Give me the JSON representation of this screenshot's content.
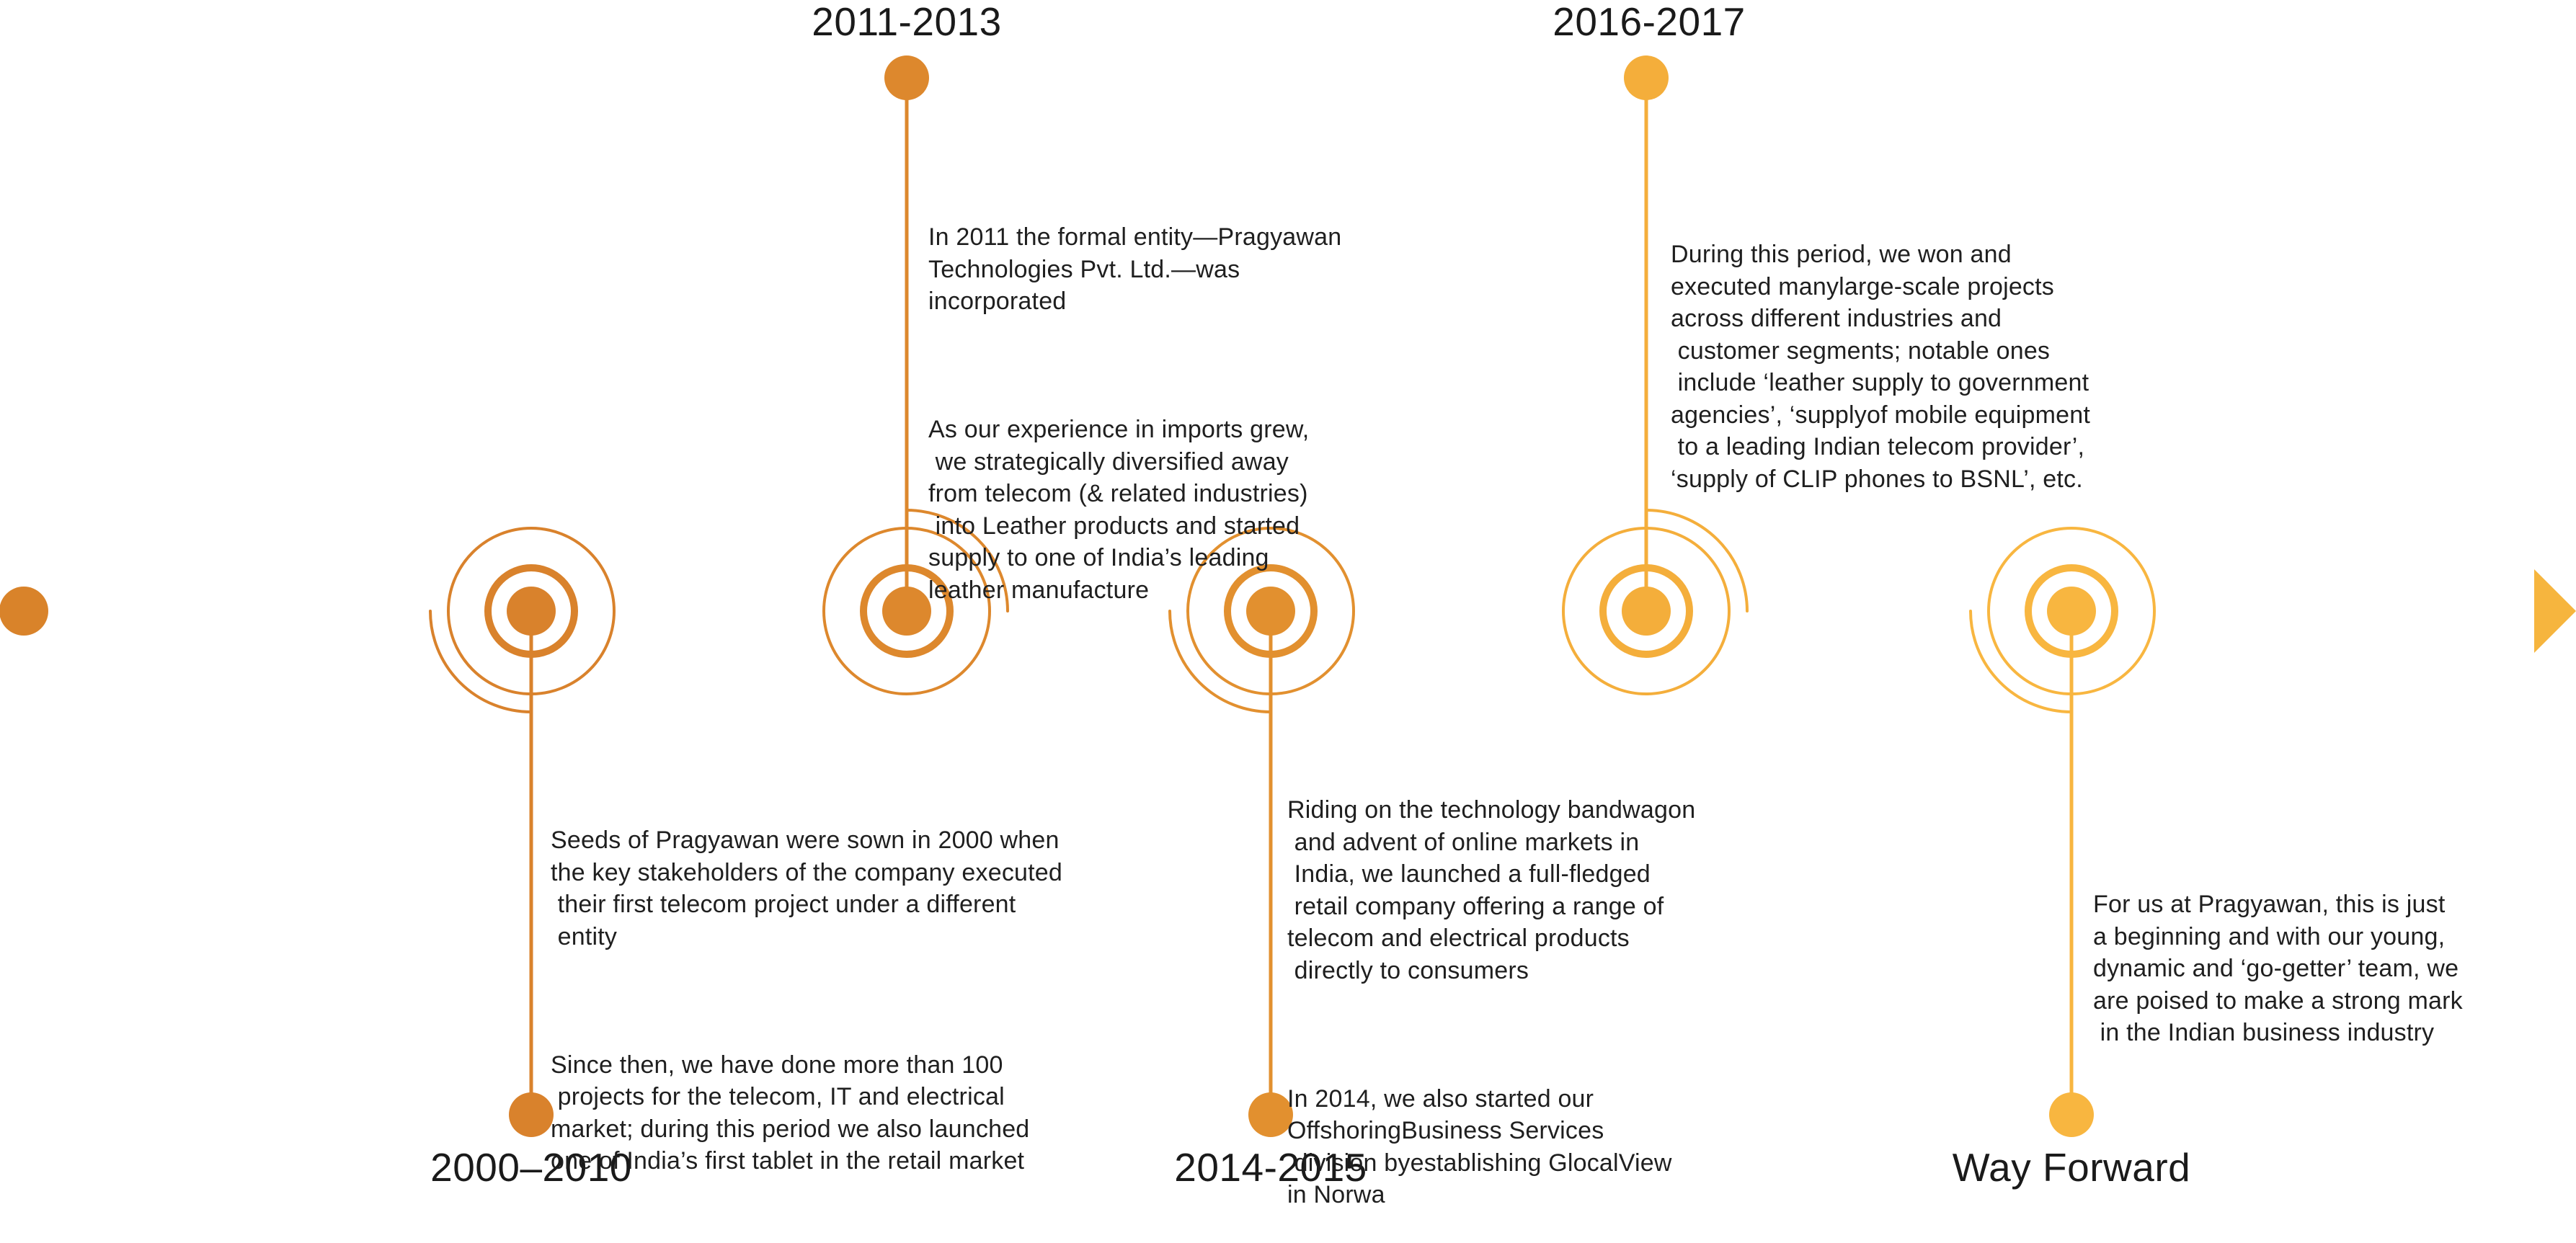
{
  "colors": {
    "arrow_start": "#D9832A",
    "arrow_end": "#F6B53E",
    "milestone_1": "#D9822C",
    "milestone_2": "#DD882D",
    "milestone_3": "#E2902F",
    "milestone_4": "#EDA436",
    "milestone_5": "#F4AE3B",
    "milestone_6": "#F8B640"
  },
  "milestones": [
    {
      "label": "2000–2010",
      "paragraphs": [
        "Seeds of Pragyawan were sown in 2000 when\nthe key stakeholders of the company executed\n their first telecom project under a different\n entity",
        "Since then, we have done more than 100\n projects for the telecom, IT and electrical\nmarket; during this period we also launched\none of India’s first tablet in the retail market"
      ]
    },
    {
      "label": "2011-2013",
      "paragraphs": [
        "In 2011 the formal entity—Pragyawan\nTechnologies Pvt. Ltd.—was\nincorporated",
        "As our experience in imports grew,\n we strategically diversified away\nfrom telecom (& related industries)\n into Leather products and started\nsupply to one of India’s leading\nleather manufacture"
      ]
    },
    {
      "label": "2014-2015",
      "paragraphs": [
        "Riding on the technology bandwagon\n and advent of online markets in\n India, we launched a full-fledged\n retail company offering a range of\ntelecom and electrical products\n directly to consumers",
        "In 2014, we also started our\nOffshoringBusiness Services\n division byestablishing GlocalView\nin Norwa"
      ]
    },
    {
      "label": "2016-2017",
      "paragraphs": [
        "During this period, we won and\nexecuted manylarge-scale projects\nacross different industries and\n customer segments; notable ones\n include ‘leather supply to government\nagencies’, ‘supplyof mobile equipment\n to a leading Indian telecom provider’,\n‘supply of CLIP phones to BSNL’, etc."
      ]
    },
    {
      "label": "Way Forward",
      "paragraphs": [
        "For us at Pragyawan, this is just\na beginning and with our young,\ndynamic and ‘go-getter’ team, we\nare poised to make a strong mark\n in the Indian business industry"
      ]
    }
  ]
}
